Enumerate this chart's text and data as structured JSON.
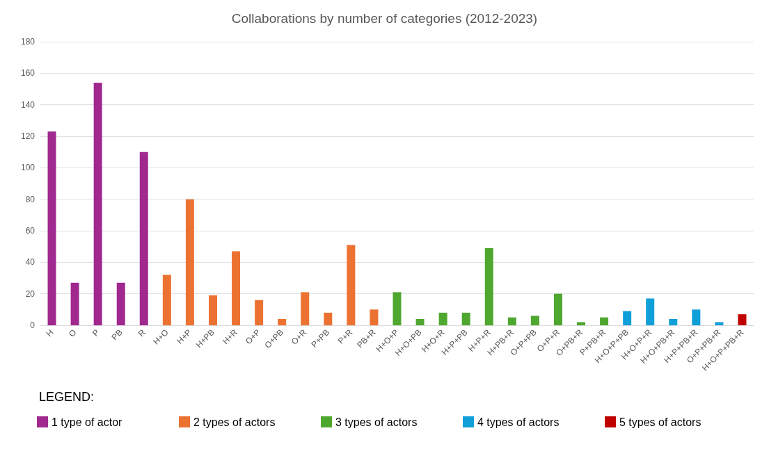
{
  "chart_data": {
    "type": "bar",
    "title": "Collaborations by number of categories (2012-2023)",
    "legend_title": "LEGEND:",
    "categories": [
      "H",
      "O",
      "P",
      "PB",
      "R",
      "H+O",
      "H+P",
      "H+PB",
      "H+R",
      "O+P",
      "O+PB",
      "O+R",
      "P+PB",
      "P+R",
      "PB+R",
      "H+O+P",
      "H+O+PB",
      "H+O+R",
      "H+P+PB",
      "H+P+R",
      "H+PB+R",
      "O+P+PB",
      "O+P+R",
      "O+PB+R",
      "P+PB+R",
      "H+O+P+PB",
      "H+O+P+R",
      "H+O+PB+R",
      "H+P+PB+R",
      "O+P+PB+R",
      "H+O+P+PB+R"
    ],
    "stacked": true,
    "series": [
      {
        "name": "1 type of actor",
        "color": "#a0288f",
        "values": [
          123,
          27,
          154,
          27,
          110,
          null,
          null,
          null,
          null,
          null,
          null,
          null,
          null,
          null,
          null,
          null,
          null,
          null,
          null,
          null,
          null,
          null,
          null,
          null,
          null,
          null,
          null,
          null,
          null,
          null,
          null
        ]
      },
      {
        "name": "2 types of actors",
        "color": "#ec7232",
        "values": [
          null,
          null,
          null,
          null,
          null,
          32,
          80,
          19,
          47,
          16,
          4,
          21,
          8,
          51,
          10,
          null,
          null,
          null,
          null,
          null,
          null,
          null,
          null,
          null,
          null,
          null,
          null,
          null,
          null,
          null,
          null
        ]
      },
      {
        "name": "3 types of actors",
        "color": "#4ea72e",
        "values": [
          null,
          null,
          null,
          null,
          null,
          null,
          null,
          null,
          null,
          null,
          null,
          null,
          null,
          null,
          null,
          21,
          4,
          8,
          8,
          49,
          5,
          6,
          20,
          2,
          5,
          null,
          null,
          null,
          null,
          null,
          null
        ]
      },
      {
        "name": "4 types of actors",
        "color": "#109fd9",
        "values": [
          null,
          null,
          null,
          null,
          null,
          null,
          null,
          null,
          null,
          null,
          null,
          null,
          null,
          null,
          null,
          null,
          null,
          null,
          null,
          null,
          null,
          null,
          null,
          null,
          null,
          9,
          17,
          4,
          10,
          2,
          null
        ]
      },
      {
        "name": "5 types of actors",
        "color": "#c00000",
        "values": [
          null,
          null,
          null,
          null,
          null,
          null,
          null,
          null,
          null,
          null,
          null,
          null,
          null,
          null,
          null,
          null,
          null,
          null,
          null,
          null,
          null,
          null,
          null,
          null,
          null,
          null,
          null,
          null,
          null,
          null,
          7
        ]
      }
    ],
    "ylim": [
      0,
      180
    ],
    "yticks": [
      0,
      20,
      40,
      60,
      80,
      100,
      120,
      140,
      160,
      180
    ],
    "grid": "y",
    "legend": "bottom"
  }
}
